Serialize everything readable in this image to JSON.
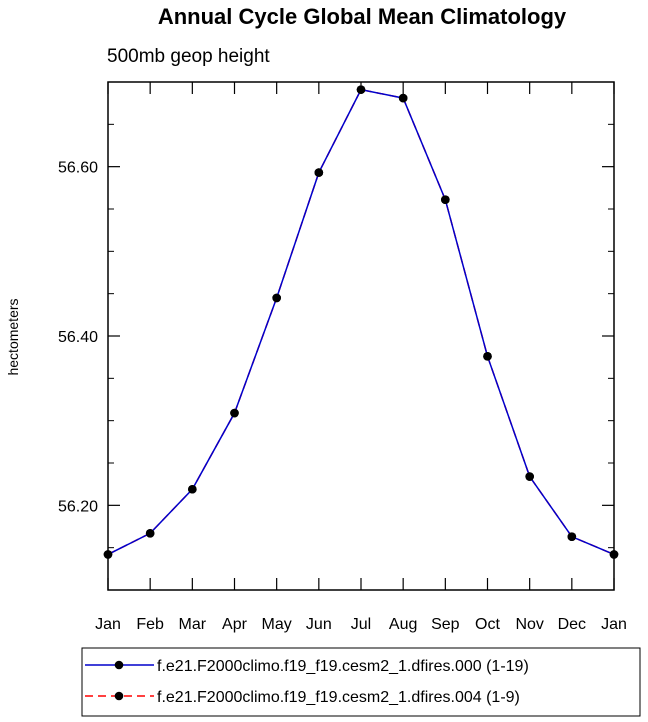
{
  "chart_data": {
    "type": "line",
    "title": "Annual Cycle Global Mean Climatology",
    "subtitle": "500mb geop height",
    "xlabel": "",
    "ylabel": "hectometers",
    "categories": [
      "Jan",
      "Feb",
      "Mar",
      "Apr",
      "May",
      "Jun",
      "Jul",
      "Aug",
      "Sep",
      "Oct",
      "Nov",
      "Dec",
      "Jan"
    ],
    "ylim": [
      56.1,
      56.7
    ],
    "yticks": [
      56.2,
      56.4,
      56.6
    ],
    "ytick_labels": [
      "56.20",
      "56.40",
      "56.60"
    ],
    "series": [
      {
        "name": "f.e21.F2000climo.f19_f19.cesm2_1.dfires.000 (1-19)",
        "color": "#0000cc",
        "line_style": "solid",
        "marker": "filled-circle",
        "values": [
          56.142,
          56.167,
          56.219,
          56.309,
          56.445,
          56.593,
          56.691,
          56.681,
          56.561,
          56.376,
          56.234,
          56.163,
          56.142
        ]
      },
      {
        "name": "f.e21.F2000climo.f19_f19.cesm2_1.dfires.004 (1-9)",
        "color": "#ff0000",
        "line_style": "dashed",
        "marker": "filled-circle",
        "values": [
          56.142,
          56.167,
          56.219,
          56.309,
          56.445,
          56.593,
          56.691,
          56.681,
          56.561,
          56.376,
          56.234,
          56.163,
          56.142
        ]
      }
    ],
    "grid": false,
    "legend_position": "bottom"
  }
}
